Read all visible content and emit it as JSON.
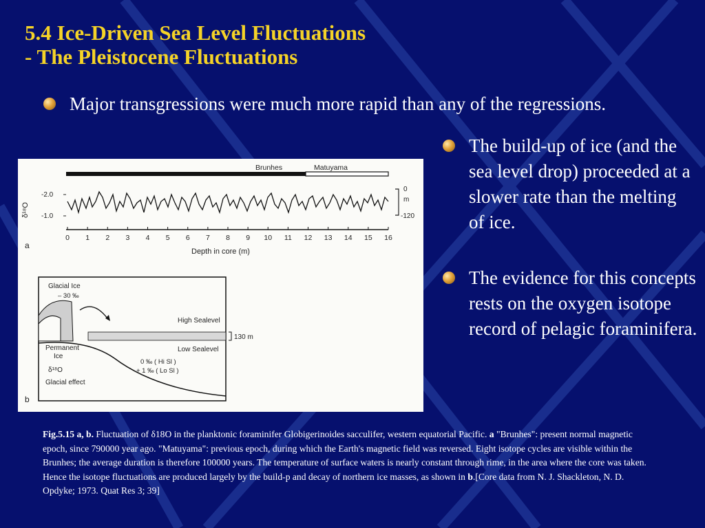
{
  "title": {
    "line1": "5.4 Ice-Driven Sea Level Fluctuations",
    "line2": "- The Pleistocene Fluctuations"
  },
  "bullets": [
    "Major transgressions were much more rapid than any of the regressions.",
    "The build-up of ice (and the sea level drop) proceeded at a slower rate than the melting of ice.",
    "The evidence for this concepts rests on the oxygen isotope record of pelagic foraminifera."
  ],
  "figure": {
    "panel_a": {
      "label": "a",
      "epoch_brunhes": "Brunhes",
      "epoch_matuyama": "Matuyama",
      "brunhes_end_depth": 12,
      "y_axis_label": "δ¹⁸O",
      "y_ticks": [
        "-2.0",
        "-1.0"
      ],
      "right_ticks": [
        "0",
        "m",
        "-120"
      ],
      "x_axis_label": "Depth in core (m)",
      "x_ticks": [
        "0",
        "1",
        "2",
        "3",
        "4",
        "5",
        "6",
        "7",
        "8",
        "9",
        "10",
        "11",
        "12",
        "13",
        "14",
        "15",
        "16"
      ]
    },
    "panel_b": {
      "label": "b",
      "glacial_ice": "Glacial Ice",
      "glacial_ice_value": "– 30 ‰",
      "permanent_ice_1": "Permanent",
      "permanent_ice_2": "Ice",
      "high_sealevel": "High Sealevel",
      "low_sealevel": "Low Sealevel",
      "range": "130 m",
      "hi_sl": "0 ‰ ( Hi Sl )",
      "lo_sl": "+ 1 ‰ ( Lo Sl )",
      "delta_label": "δ¹⁸O",
      "glacial_effect": "Glacial effect"
    }
  },
  "caption": {
    "fig_label": "Fig.5.15 a, b.",
    "part1": " Fluctuation of δ18O in the planktonic foraminifer Globigerinoides sacculifer,  western equatorial Pacific. ",
    "a_label": "a",
    "part2": " \"Brunhes\": present normal magnetic epoch, since 790000 year ago. \"Matuyama\": previous epoch, during which the Earth's magnetic field was reversed. Eight isotope cycles are visible within the Brunhes; the average duration is therefore 100000 years. The temperature of surface waters is nearly constant through rime, in the area where the core was taken. Hence the isotope fluctuations are produced largely by the build-p and decay of northern ice masses, as shown in ",
    "b_label": "b",
    "part3": ".[Core data from N. J. Shackleton, N. D. Opdyke; 1973. Quat Res 3; 39]"
  },
  "colors": {
    "background": "#06106e",
    "title": "#f5d327",
    "text": "#ffffff",
    "stripes": "#2a46a8"
  }
}
